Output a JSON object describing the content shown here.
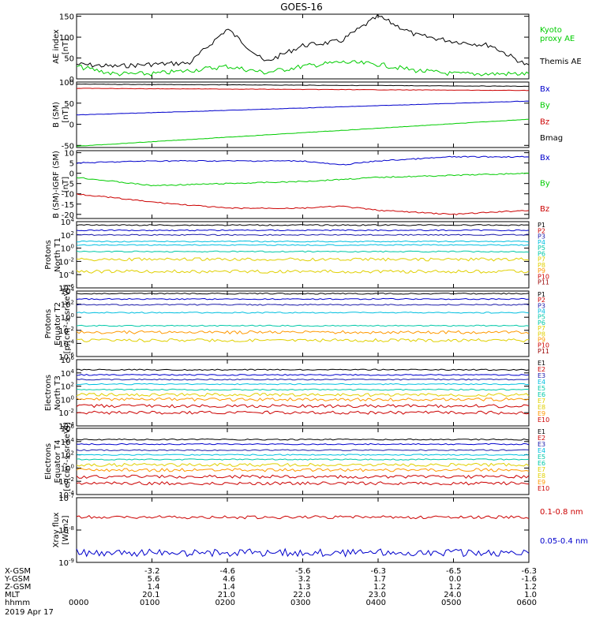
{
  "title": "GOES-16",
  "date": "2019 Apr 17",
  "colors": {
    "black": "#000000",
    "green": "#00cc00",
    "blue": "#0000cc",
    "red": "#cc0000",
    "navy": "#1a1aaa",
    "cyan": "#00bfe0",
    "teal": "#00c8a8",
    "yellow": "#e0d000",
    "orange": "#ff9900",
    "crimson": "#cc0000",
    "darkred": "#990000"
  },
  "panels": [
    {
      "id": "ae",
      "ylabel": "AE index",
      "yunit": "[nT]",
      "ticks": [
        "150",
        "100",
        "50",
        "0"
      ],
      "legend": [
        {
          "text": "Kyoto",
          "color": "green"
        },
        {
          "text": "proxy AE",
          "color": "green"
        },
        {
          "text": "Themis AE",
          "color": "black"
        }
      ]
    },
    {
      "id": "bsm",
      "ylabel": "B (SM)",
      "yunit": "[nT]",
      "ticks": [
        "100",
        "50",
        "0",
        "-50"
      ],
      "legend": [
        {
          "text": "Bx",
          "color": "blue"
        },
        {
          "text": "By",
          "color": "green"
        },
        {
          "text": "Bz",
          "color": "red"
        },
        {
          "text": "Bmag",
          "color": "black"
        }
      ]
    },
    {
      "id": "bigrf",
      "ylabel": "B (SM)-IGRF (SM)",
      "yunit": "[nT]",
      "ticks": [
        "10",
        "5",
        "0",
        "-5",
        "-10",
        "-15",
        "-20"
      ],
      "legend": [
        {
          "text": "Bx",
          "color": "blue"
        },
        {
          "text": "By",
          "color": "green"
        },
        {
          "text": "Bz",
          "color": "red"
        }
      ]
    },
    {
      "id": "pn",
      "ylabel": "Protons",
      "ylabel2": "North T1",
      "yunit": "",
      "ticks": [
        "10^4",
        "10^2",
        "10^0",
        "10^-2",
        "10^-4",
        "10^-6"
      ],
      "legend_list": [
        "P1",
        "P2",
        "P3",
        "P4",
        "P5",
        "P6",
        "P7",
        "P8",
        "P9",
        "P10",
        "P11"
      ]
    },
    {
      "id": "pe",
      "ylabel": "Protons",
      "ylabel2": "Equator T2",
      "yunit": "[p/(cm²-s-sr-keV)]",
      "ticks": [
        "10^4",
        "10^2",
        "10^0",
        "10^-2",
        "10^-4",
        "10^-6"
      ],
      "legend_list": [
        "P1",
        "P2",
        "P3",
        "P4",
        "P5",
        "P6",
        "P7",
        "P8",
        "P9",
        "P10",
        "P11"
      ]
    },
    {
      "id": "en",
      "ylabel": "Electrons",
      "ylabel2": "North T3",
      "yunit": "",
      "ticks": [
        "10^6",
        "10^4",
        "10^2",
        "10^0",
        "10^-2",
        "10^-4"
      ],
      "legend_list": [
        "E1",
        "E2",
        "E3",
        "E4",
        "E5",
        "E6",
        "E7",
        "E8",
        "E9",
        "E10"
      ]
    },
    {
      "id": "ee",
      "ylabel": "Electrons",
      "ylabel2": "Equator T4",
      "yunit": "[e/(cm²-s-sr-keV)]",
      "ticks": [
        "10^6",
        "10^4",
        "10^2",
        "10^0",
        "10^-2",
        "10^-4"
      ],
      "legend_list": [
        "E1",
        "E2",
        "E3",
        "E4",
        "E5",
        "E6",
        "E7",
        "E8",
        "E9",
        "E10"
      ]
    },
    {
      "id": "xray",
      "ylabel": "Xray flux",
      "yunit": "[W/m2]",
      "ticks": [
        "10^-7",
        "10^-8",
        "10^-9"
      ],
      "legend": [
        {
          "text": "0.1-0.8 nm",
          "color": "red"
        },
        {
          "text": "0.05-0.4 nm",
          "color": "blue"
        }
      ]
    }
  ],
  "footer": {
    "row_labels": [
      "X-GSM",
      "Y-GSM",
      "Z-GSM",
      "MLT",
      "hhmm"
    ],
    "columns": [
      {
        "x": "",
        "y": "",
        "z": "",
        "mlt": "",
        "hhmm": "0000"
      },
      {
        "x": "-3.2",
        "y": "5.6",
        "z": "1.4",
        "mlt": "20.1",
        "hhmm": "0100"
      },
      {
        "x": "-4.6",
        "y": "4.6",
        "z": "1.4",
        "mlt": "21.0",
        "hhmm": "0200"
      },
      {
        "x": "-5.6",
        "y": "3.2",
        "z": "1.3",
        "mlt": "22.0",
        "hhmm": "0300"
      },
      {
        "x": "-6.3",
        "y": "1.7",
        "z": "1.2",
        "mlt": "23.0",
        "hhmm": "0400"
      },
      {
        "x": "-6.5",
        "y": "0.0",
        "z": "1.2",
        "mlt": "24.0",
        "hhmm": "0500"
      },
      {
        "x": "-6.3",
        "y": "-1.6",
        "z": "1.2",
        "mlt": "1.0",
        "hhmm": "0600"
      }
    ]
  },
  "chart_data": [
    {
      "type": "line",
      "title": "GOES-16",
      "panel": "AE index",
      "ylabel": "AE index [nT]",
      "xlabel": "hhmm",
      "x": [
        0,
        0.5,
        1,
        1.5,
        2,
        2.5,
        3,
        3.5,
        4,
        4.5,
        5,
        5.5,
        6
      ],
      "ylim": [
        0,
        155
      ],
      "series": [
        {
          "name": "Themis AE",
          "color": "black",
          "values": [
            35,
            30,
            35,
            38,
            120,
            40,
            80,
            90,
            150,
            105,
            90,
            80,
            30
          ]
        },
        {
          "name": "Kyoto proxy AE",
          "color": "green",
          "values": [
            30,
            12,
            12,
            20,
            30,
            15,
            30,
            40,
            35,
            20,
            12,
            12,
            12
          ]
        }
      ]
    },
    {
      "type": "line",
      "panel": "B (SM)",
      "ylabel": "B (SM) [nT]",
      "ylim": [
        -55,
        100
      ],
      "x": [
        0,
        6
      ],
      "series": [
        {
          "name": "Bmag",
          "color": "black",
          "values": [
            95,
            90
          ]
        },
        {
          "name": "Bx",
          "color": "blue",
          "values": [
            22,
            55
          ]
        },
        {
          "name": "By",
          "color": "green",
          "values": [
            -52,
            12
          ]
        },
        {
          "name": "Bz",
          "color": "red",
          "values": [
            85,
            80
          ]
        }
      ]
    },
    {
      "type": "line",
      "panel": "B (SM)-IGRF (SM)",
      "ylabel": "B (SM)-IGRF (SM) [nT]",
      "ylim": [
        -22,
        11
      ],
      "x": [
        0,
        1,
        2,
        3,
        3.5,
        4,
        5,
        6
      ],
      "series": [
        {
          "name": "Bx",
          "color": "blue",
          "values": [
            5,
            6,
            6,
            6,
            4,
            6,
            8,
            8
          ]
        },
        {
          "name": "By",
          "color": "green",
          "values": [
            -2,
            -6,
            -5,
            -4,
            -3,
            -2,
            -1,
            0
          ]
        },
        {
          "name": "Bz",
          "color": "red",
          "values": [
            -10,
            -14,
            -17,
            -17,
            -16,
            -18,
            -20,
            -18
          ]
        }
      ]
    },
    {
      "type": "line",
      "panel": "Protons North T1",
      "yscale": "log",
      "ylim": [
        1e-06,
        10000.0
      ],
      "series": [
        {
          "name": "P1",
          "color": "black",
          "values": [
            3000
          ]
        },
        {
          "name": "P2",
          "color": "blue",
          "values": [
            500
          ]
        },
        {
          "name": "P3",
          "color": "navy",
          "values": [
            100
          ]
        },
        {
          "name": "P4",
          "color": "cyan",
          "values": [
            10
          ]
        },
        {
          "name": "P5",
          "color": "cyan",
          "values": [
            3
          ]
        },
        {
          "name": "P6",
          "color": "teal",
          "values": [
            0.3
          ]
        },
        {
          "name": "P7",
          "color": "yellow",
          "values": [
            0.02
          ]
        },
        {
          "name": "P8",
          "color": "yellow",
          "values": [
            0.0003
          ]
        }
      ]
    },
    {
      "type": "line",
      "panel": "Protons Equator T2",
      "yscale": "log",
      "ylim": [
        1e-06,
        10000.0
      ],
      "series": [
        {
          "name": "P1",
          "color": "black",
          "values": [
            4000
          ]
        },
        {
          "name": "P2",
          "color": "blue",
          "values": [
            600
          ]
        },
        {
          "name": "P3",
          "color": "navy",
          "values": [
            80
          ]
        },
        {
          "name": "P4",
          "color": "cyan",
          "values": [
            5
          ]
        },
        {
          "name": "P5",
          "color": "teal",
          "values": [
            0.05
          ]
        },
        {
          "name": "P6",
          "color": "orange",
          "values": [
            0.005
          ]
        },
        {
          "name": "P7",
          "color": "yellow",
          "values": [
            0.0003
          ]
        }
      ]
    },
    {
      "type": "line",
      "panel": "Electrons North T3",
      "yscale": "log",
      "ylim": [
        0.0001,
        1000000.0
      ],
      "series": [
        {
          "name": "E1",
          "color": "black",
          "values": [
            30000
          ]
        },
        {
          "name": "E2",
          "color": "blue",
          "values": [
            5000
          ]
        },
        {
          "name": "E3",
          "color": "navy",
          "values": [
            1000
          ]
        },
        {
          "name": "E4",
          "color": "cyan",
          "values": [
            200
          ]
        },
        {
          "name": "E5",
          "color": "teal",
          "values": [
            30
          ]
        },
        {
          "name": "E6",
          "color": "yellow",
          "values": [
            5
          ]
        },
        {
          "name": "E7",
          "color": "orange",
          "values": [
            1
          ]
        },
        {
          "name": "E8",
          "color": "red",
          "values": [
            0.1
          ]
        },
        {
          "name": "E9",
          "color": "red",
          "values": [
            0.01
          ]
        }
      ]
    },
    {
      "type": "line",
      "panel": "Electrons Equator T4",
      "yscale": "log",
      "ylim": [
        0.0001,
        1000000.0
      ],
      "series": [
        {
          "name": "E1",
          "color": "black",
          "values": [
            20000
          ]
        },
        {
          "name": "E2",
          "color": "blue",
          "values": [
            4000
          ]
        },
        {
          "name": "E3",
          "color": "navy",
          "values": [
            500
          ]
        },
        {
          "name": "E4",
          "color": "cyan",
          "values": [
            100
          ]
        },
        {
          "name": "E5",
          "color": "teal",
          "values": [
            20
          ]
        },
        {
          "name": "E6",
          "color": "yellow",
          "values": [
            3
          ]
        },
        {
          "name": "E7",
          "color": "orange",
          "values": [
            0.5
          ]
        },
        {
          "name": "E8",
          "color": "red",
          "values": [
            0.05
          ]
        },
        {
          "name": "E9",
          "color": "red",
          "values": [
            0.005
          ]
        }
      ]
    },
    {
      "type": "line",
      "panel": "Xray flux",
      "yscale": "log",
      "ylim": [
        1e-09,
        1e-07
      ],
      "ylabel": "Xray flux [W/m2]",
      "series": [
        {
          "name": "0.1-0.8 nm",
          "color": "red",
          "values": [
            2.5e-08
          ]
        },
        {
          "name": "0.05-0.4 nm",
          "color": "blue",
          "values": [
            2e-09
          ]
        }
      ]
    }
  ]
}
